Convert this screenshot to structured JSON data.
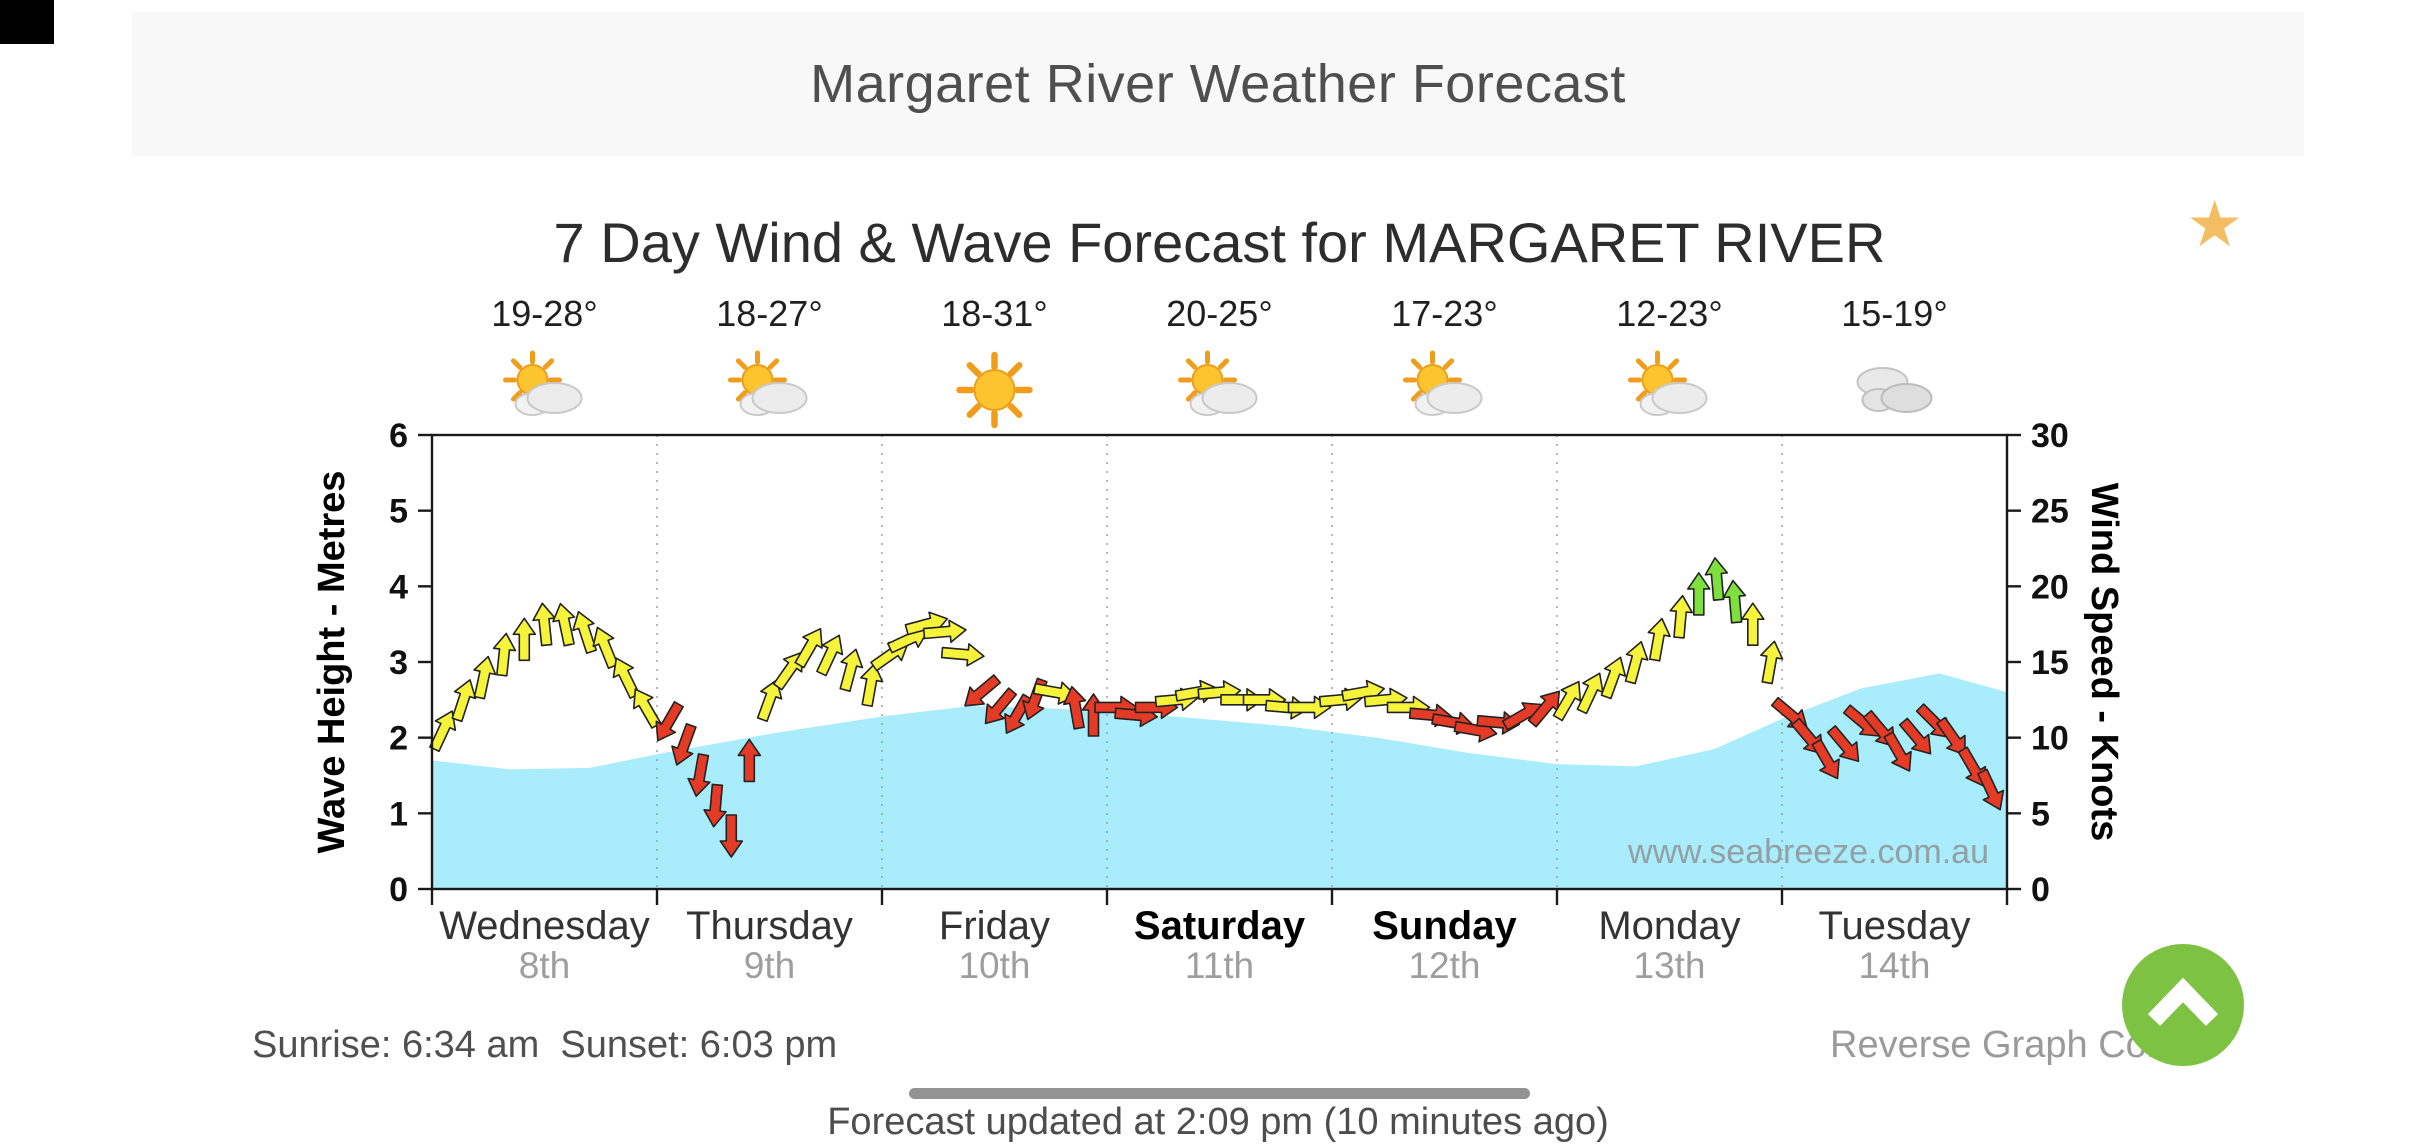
{
  "header": {
    "title": "Margaret River Weather Forecast"
  },
  "chart": {
    "title": "7 Day Wind & Wave Forecast for MARGARET RIVER",
    "watermark": "www.seabreeze.com.au",
    "days": [
      {
        "name": "Wednesday",
        "date": "8th",
        "temp": "19-28°",
        "icon": "partly-cloudy",
        "weekend": false
      },
      {
        "name": "Thursday",
        "date": "9th",
        "temp": "18-27°",
        "icon": "partly-cloudy",
        "weekend": false
      },
      {
        "name": "Friday",
        "date": "10th",
        "temp": "18-31°",
        "icon": "sunny",
        "weekend": false
      },
      {
        "name": "Saturday",
        "date": "11th",
        "temp": "20-25°",
        "icon": "partly-cloudy",
        "weekend": true
      },
      {
        "name": "Sunday",
        "date": "12th",
        "temp": "17-23°",
        "icon": "partly-cloudy",
        "weekend": true
      },
      {
        "name": "Monday",
        "date": "13th",
        "temp": "12-23°",
        "icon": "partly-cloudy",
        "weekend": false
      },
      {
        "name": "Tuesday",
        "date": "14th",
        "temp": "15-19°",
        "icon": "cloudy",
        "weekend": false
      }
    ]
  },
  "chart_data": {
    "type": "area",
    "title": "7 Day Wind & Wave Forecast for MARGARET RIVER",
    "categories": [
      "Wednesday 8th",
      "Thursday 9th",
      "Friday 10th",
      "Saturday 11th",
      "Sunday 12th",
      "Monday 13th",
      "Tuesday 14th"
    ],
    "temperature_ranges_c": [
      "19-28",
      "18-27",
      "18-31",
      "20-25",
      "17-23",
      "12-23",
      "15-19"
    ],
    "left_axis": {
      "label": "Wave Height - Metres",
      "range": [
        0,
        6
      ],
      "tick_step": 1,
      "ticks": [
        0,
        1,
        2,
        3,
        4,
        5,
        6
      ]
    },
    "right_axis": {
      "label": "Wind Speed - Knots",
      "range": [
        0,
        30
      ],
      "tick_step": 5,
      "ticks": [
        0,
        5,
        10,
        15,
        20,
        25,
        30
      ]
    },
    "grid": "vertical dotted lines at day boundaries",
    "watermark": "www.seabreeze.com.au",
    "series": [
      {
        "name": "Wave Height",
        "unit": "m",
        "style": "area",
        "color": "#a9ecfb",
        "points": [
          [
            0,
            1.7
          ],
          [
            0.35,
            1.58
          ],
          [
            0.7,
            1.6
          ],
          [
            1.0,
            1.78
          ],
          [
            1.5,
            2.05
          ],
          [
            2.0,
            2.28
          ],
          [
            2.4,
            2.42
          ],
          [
            2.8,
            2.38
          ],
          [
            3.3,
            2.28
          ],
          [
            3.8,
            2.15
          ],
          [
            4.2,
            2.0
          ],
          [
            4.6,
            1.8
          ],
          [
            5.0,
            1.65
          ],
          [
            5.35,
            1.62
          ],
          [
            5.7,
            1.85
          ],
          [
            6.0,
            2.25
          ],
          [
            6.35,
            2.65
          ],
          [
            6.7,
            2.85
          ],
          [
            7,
            2.6
          ]
        ]
      },
      {
        "name": "Wind Speed",
        "unit": "knots",
        "style": "wind-arrows",
        "colors": {
          "y": "#f6f33b",
          "r": "#e33b25",
          "g": "#7de03c"
        },
        "arrows": [
          [
            0.05,
            10.5,
            25,
            "y"
          ],
          [
            0.14,
            12.5,
            18,
            "y"
          ],
          [
            0.23,
            14,
            12,
            "y"
          ],
          [
            0.32,
            15.5,
            6,
            "y"
          ],
          [
            0.41,
            16.5,
            0,
            "y"
          ],
          [
            0.5,
            17.5,
            -6,
            "y"
          ],
          [
            0.59,
            17.5,
            -12,
            "y"
          ],
          [
            0.68,
            17,
            -18,
            "y"
          ],
          [
            0.77,
            16,
            -22,
            "y"
          ],
          [
            0.86,
            14,
            -26,
            "y"
          ],
          [
            0.95,
            12,
            -30,
            "y"
          ],
          [
            1.05,
            11,
            -150,
            "r"
          ],
          [
            1.12,
            9.5,
            -160,
            "r"
          ],
          [
            1.19,
            7.5,
            -170,
            "r"
          ],
          [
            1.26,
            5.5,
            -175,
            "r"
          ],
          [
            1.33,
            3.5,
            180,
            "r"
          ],
          [
            1.41,
            8.5,
            0,
            "r"
          ],
          [
            1.5,
            12.5,
            20,
            "y"
          ],
          [
            1.59,
            14.5,
            35,
            "y"
          ],
          [
            1.68,
            16,
            30,
            "y"
          ],
          [
            1.77,
            15.5,
            25,
            "y"
          ],
          [
            1.86,
            14.5,
            15,
            "y"
          ],
          [
            1.95,
            13.5,
            10,
            "y"
          ],
          [
            2.04,
            15.5,
            55,
            "y"
          ],
          [
            2.12,
            16.5,
            65,
            "y"
          ],
          [
            2.2,
            17.5,
            75,
            "y"
          ],
          [
            2.28,
            17,
            85,
            "y"
          ],
          [
            2.36,
            15.5,
            95,
            "y"
          ],
          [
            2.44,
            13,
            -130,
            "r"
          ],
          [
            2.52,
            12,
            -140,
            "r"
          ],
          [
            2.6,
            11.5,
            -150,
            "r"
          ],
          [
            2.68,
            12.5,
            -160,
            "r"
          ],
          [
            2.77,
            13,
            100,
            "y"
          ],
          [
            2.86,
            12,
            -10,
            "r"
          ],
          [
            2.94,
            11.5,
            0,
            "r"
          ],
          [
            3.04,
            12,
            90,
            "r"
          ],
          [
            3.13,
            11.5,
            95,
            "r"
          ],
          [
            3.22,
            12,
            90,
            "r"
          ],
          [
            3.31,
            12.5,
            85,
            "y"
          ],
          [
            3.4,
            13,
            80,
            "y"
          ],
          [
            3.5,
            13,
            85,
            "y"
          ],
          [
            3.6,
            12.5,
            90,
            "y"
          ],
          [
            3.7,
            12.5,
            90,
            "y"
          ],
          [
            3.8,
            12,
            95,
            "y"
          ],
          [
            3.9,
            12,
            90,
            "y"
          ],
          [
            4.04,
            12.5,
            85,
            "y"
          ],
          [
            4.14,
            13,
            80,
            "y"
          ],
          [
            4.24,
            12.5,
            85,
            "y"
          ],
          [
            4.34,
            12,
            90,
            "y"
          ],
          [
            4.44,
            11.5,
            95,
            "r"
          ],
          [
            4.54,
            11,
            100,
            "r"
          ],
          [
            4.64,
            10.5,
            100,
            "r"
          ],
          [
            4.74,
            11,
            95,
            "r"
          ],
          [
            4.85,
            11.5,
            60,
            "r"
          ],
          [
            4.95,
            12,
            40,
            "r"
          ],
          [
            5.05,
            12.5,
            30,
            "y"
          ],
          [
            5.15,
            13,
            25,
            "y"
          ],
          [
            5.25,
            14,
            20,
            "y"
          ],
          [
            5.35,
            15,
            15,
            "y"
          ],
          [
            5.45,
            16.5,
            10,
            "y"
          ],
          [
            5.55,
            18,
            5,
            "y"
          ],
          [
            5.63,
            19.5,
            0,
            "g"
          ],
          [
            5.71,
            20.5,
            -5,
            "g"
          ],
          [
            5.79,
            19,
            -5,
            "g"
          ],
          [
            5.87,
            17.5,
            0,
            "y"
          ],
          [
            5.95,
            15,
            10,
            "y"
          ],
          [
            6.04,
            11.5,
            130,
            "r"
          ],
          [
            6.12,
            10,
            140,
            "r"
          ],
          [
            6.2,
            8.5,
            150,
            "r"
          ],
          [
            6.28,
            9.5,
            140,
            "r"
          ],
          [
            6.36,
            11,
            130,
            "r"
          ],
          [
            6.44,
            10.5,
            140,
            "r"
          ],
          [
            6.52,
            9,
            150,
            "r"
          ],
          [
            6.6,
            10,
            140,
            "r"
          ],
          [
            6.68,
            11,
            135,
            "r"
          ],
          [
            6.76,
            10,
            145,
            "r"
          ],
          [
            6.85,
            8,
            150,
            "r"
          ],
          [
            6.93,
            6.5,
            155,
            "r"
          ]
        ]
      }
    ]
  },
  "footer": {
    "sunrise_sunset": "Sunrise: 6:34 am  Sunset: 6:03 pm",
    "reverse_link": "Reverse Graph Colours",
    "updated": "Forecast updated at 2:09 pm (10 minutes ago)"
  },
  "colors": {
    "header_band": "#f8f8f8",
    "wave_area": "#a9ecfb",
    "wind_yellow": "#f6f33b",
    "wind_red": "#e33b25",
    "wind_green": "#7de03c",
    "scroll_button": "#7dc242",
    "star": "#f3be63"
  }
}
